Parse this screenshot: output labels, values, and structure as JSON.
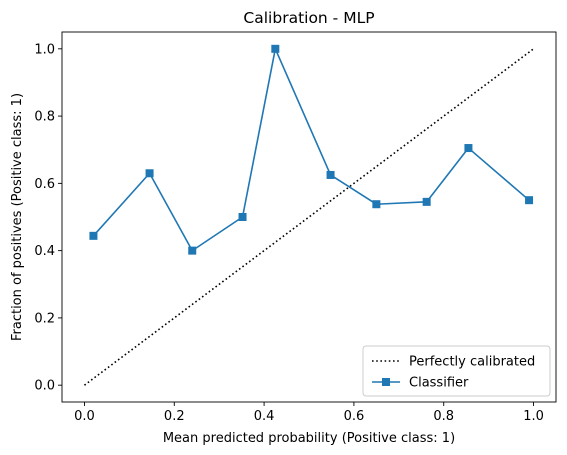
{
  "chart_data": {
    "type": "line",
    "title": "Calibration - MLP",
    "xlabel": "Mean predicted probability (Positive class: 1)",
    "ylabel": "Fraction of positives (Positive class: 1)",
    "xlim": [
      -0.05,
      1.05
    ],
    "ylim": [
      -0.05,
      1.05
    ],
    "xticks": [
      "0.0",
      "0.2",
      "0.4",
      "0.6",
      "0.8",
      "1.0"
    ],
    "yticks": [
      "0.0",
      "0.2",
      "0.4",
      "0.6",
      "0.8",
      "1.0"
    ],
    "grid": false,
    "legend_position": "lower-right",
    "series": [
      {
        "name": "Perfectly calibrated",
        "style": "dotted",
        "color": "#000000",
        "x": [
          0,
          1
        ],
        "y": [
          0,
          1
        ]
      },
      {
        "name": "Classifier",
        "style": "solid",
        "marker": "square",
        "color": "#1f77b4",
        "x": [
          0.02,
          0.145,
          0.24,
          0.352,
          0.425,
          0.548,
          0.65,
          0.762,
          0.855,
          0.99
        ],
        "y": [
          0.444,
          0.63,
          0.4,
          0.5,
          1.0,
          0.625,
          0.538,
          0.545,
          0.705,
          0.55
        ]
      }
    ]
  }
}
